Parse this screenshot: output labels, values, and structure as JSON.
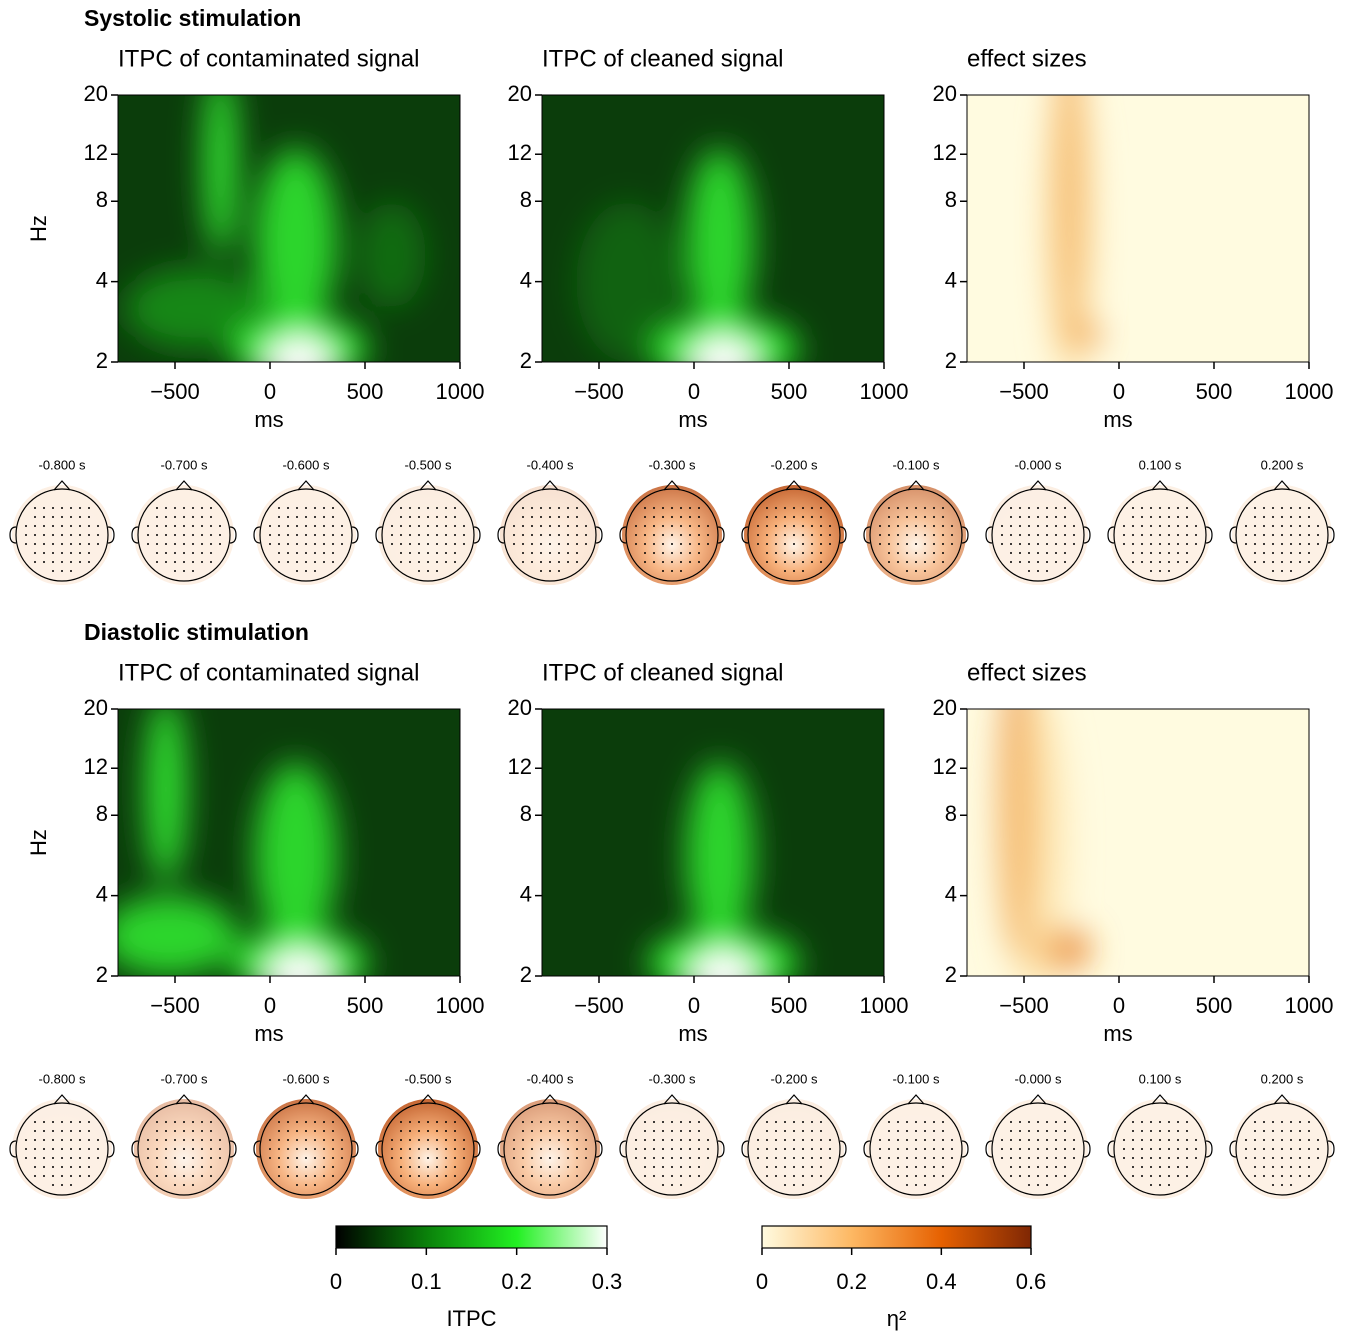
{
  "sections": [
    {
      "title": "Systolic stimulation",
      "topomap_labels": [
        "-0.800 s",
        "-0.700 s",
        "-0.600 s",
        "-0.500 s",
        "-0.400 s",
        "-0.300 s",
        "-0.200 s",
        "-0.100 s",
        "-0.000 s",
        "0.100 s",
        "0.200 s"
      ]
    },
    {
      "title": "Diastolic stimulation",
      "topomap_labels": [
        "-0.800 s",
        "-0.700 s",
        "-0.600 s",
        "-0.500 s",
        "-0.400 s",
        "-0.300 s",
        "-0.200 s",
        "-0.100 s",
        "-0.000 s",
        "0.100 s",
        "0.200 s"
      ]
    }
  ],
  "chart_data": [
    {
      "type": "heatmap",
      "title": "ITPC of contaminated signal",
      "xlabel": "ms",
      "ylabel": "Hz",
      "xlim": [
        -800,
        1000
      ],
      "xticks": [
        {
          "value": -500,
          "label": "−500"
        },
        0,
        500,
        1000
      ],
      "ylim": [
        2,
        20
      ],
      "yticks": [
        2,
        4,
        8,
        12,
        20
      ],
      "ylog": true,
      "colors": [
        "#0b3d0b",
        "#1a9a1a",
        "#33f033",
        "#ffffff"
      ]
    },
    {
      "type": "heatmap",
      "title": "ITPC of cleaned signal",
      "xlabel": "ms",
      "xlim": [
        -800,
        1000
      ],
      "xticks": [
        {
          "value": -500,
          "label": "−500"
        },
        0,
        500,
        1000
      ],
      "ylim": [
        2,
        20
      ],
      "yticks": [
        2,
        4,
        8,
        12,
        20
      ],
      "ylog": true,
      "colors": [
        "#0b3d0b",
        "#1a9a1a",
        "#33f033",
        "#ffffff"
      ]
    },
    {
      "type": "heatmap",
      "title": "effect sizes",
      "xlabel": "ms",
      "xlim": [
        -800,
        1000
      ],
      "xticks": [
        {
          "value": -500,
          "label": "−500"
        },
        0,
        500,
        1000
      ],
      "ylim": [
        2,
        20
      ],
      "yticks": [
        2,
        4,
        8,
        12,
        20
      ],
      "ylog": true,
      "colors": [
        "#fffbe0",
        "#fde0a0",
        "#e8801e",
        "#c85a10"
      ]
    },
    {
      "type": "heatmap",
      "title": "ITPC of contaminated signal",
      "xlabel": "ms",
      "ylabel": "Hz",
      "xlim": [
        -800,
        1000
      ],
      "xticks": [
        {
          "value": -500,
          "label": "−500"
        },
        0,
        500,
        1000
      ],
      "ylim": [
        2,
        20
      ],
      "yticks": [
        2,
        4,
        8,
        12,
        20
      ],
      "ylog": true,
      "colors": [
        "#0b3d0b",
        "#1a9a1a",
        "#33f033",
        "#ffffff"
      ]
    },
    {
      "type": "heatmap",
      "title": "ITPC of cleaned signal",
      "xlabel": "ms",
      "xlim": [
        -800,
        1000
      ],
      "xticks": [
        {
          "value": -500,
          "label": "−500"
        },
        0,
        500,
        1000
      ],
      "ylim": [
        2,
        20
      ],
      "yticks": [
        2,
        4,
        8,
        12,
        20
      ],
      "ylog": true,
      "colors": [
        "#0b3d0b",
        "#1a9a1a",
        "#33f033",
        "#ffffff"
      ]
    },
    {
      "type": "heatmap",
      "title": "effect sizes",
      "xlabel": "ms",
      "xlim": [
        -800,
        1000
      ],
      "xticks": [
        {
          "value": -500,
          "label": "−500"
        },
        0,
        500,
        1000
      ],
      "ylim": [
        2,
        20
      ],
      "yticks": [
        2,
        4,
        8,
        12,
        20
      ],
      "ylog": true,
      "colors": [
        "#fffbe0",
        "#fde0a0",
        "#e8801e",
        "#c85a10"
      ]
    },
    {
      "type": "colorbar",
      "xlabel": "ITPC",
      "xlim": [
        0,
        0.3
      ],
      "xticks": [
        0,
        0.1,
        0.2,
        0.3
      ],
      "colors": [
        "#000000",
        "#0a800a",
        "#22f022",
        "#ffffff"
      ]
    },
    {
      "type": "colorbar",
      "xlabel": "η²",
      "xlim": [
        0,
        0.6
      ],
      "xticks": [
        0,
        0.2,
        0.4,
        0.6
      ],
      "colors": [
        "#fffbe0",
        "#fdb863",
        "#e66101",
        "#7f2704"
      ]
    }
  ]
}
